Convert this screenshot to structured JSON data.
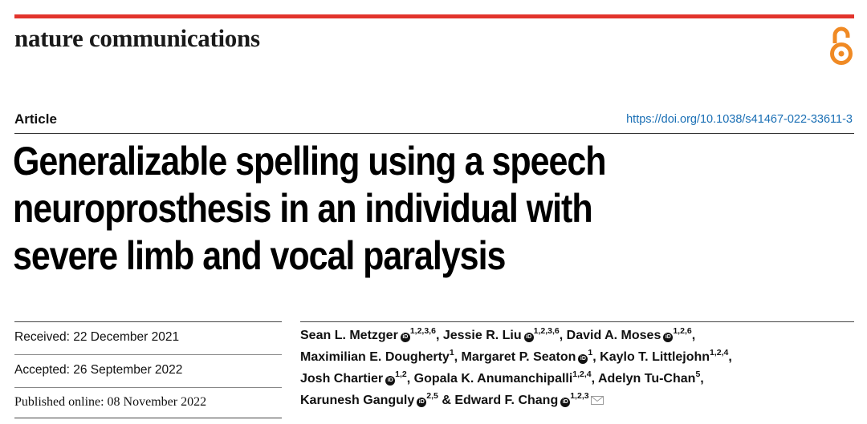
{
  "header": {
    "journal": "nature communications",
    "article_type": "Article",
    "doi": "https://doi.org/10.1038/s41467-022-33611-3"
  },
  "title_lines": [
    "Generalizable spelling using a speech",
    "neuroprosthesis in an individual with",
    "severe limb and vocal paralysis"
  ],
  "dates": {
    "received": "Received: 22 December 2021",
    "accepted": "Accepted: 26 September 2022",
    "published": "Published online: 08 November 2022"
  },
  "authors": [
    {
      "name": "Sean L. Metzger",
      "aff": "1,2,3,6",
      "orcid": true
    },
    {
      "name": "Jessie R. Liu",
      "aff": "1,2,3,6",
      "orcid": true
    },
    {
      "name": "David A. Moses",
      "aff": "1,2,6",
      "orcid": true
    },
    {
      "name": "Maximilian E. Dougherty",
      "aff": "1",
      "orcid": false
    },
    {
      "name": "Margaret P. Seaton",
      "aff": "1",
      "orcid": true
    },
    {
      "name": "Kaylo T. Littlejohn",
      "aff": "1,2,4",
      "orcid": false
    },
    {
      "name": "Josh Chartier",
      "aff": "1,2",
      "orcid": true
    },
    {
      "name": "Gopala K. Anumanchipalli",
      "aff": "1,2,4",
      "orcid": false
    },
    {
      "name": "Adelyn Tu-Chan",
      "aff": "5",
      "orcid": false
    },
    {
      "name": "Karunesh Ganguly",
      "aff": "2,5",
      "orcid": true
    },
    {
      "name": "Edward F. Chang",
      "aff": "1,2,3",
      "orcid": true
    }
  ],
  "author_separator": ", ",
  "final_conjunction": "& ",
  "icons": {
    "open_access": "open-access-icon",
    "orcid": "orcid-icon",
    "email": "envelope-icon"
  },
  "colors": {
    "top_bar": "#e2342c",
    "open_access": "#f08a24",
    "doi_link": "#1a6fb5"
  }
}
